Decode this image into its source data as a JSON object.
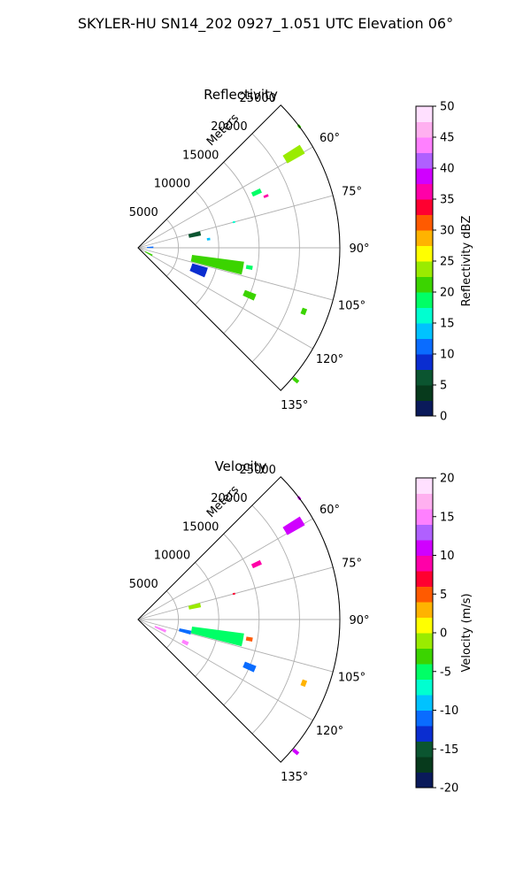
{
  "figure": {
    "title": "SKYLER-HU  SN14_202  0927_1.051 UTC Elevation 06°"
  },
  "panels": [
    {
      "title": "Reflectivity",
      "radial_label": "Meters",
      "radial_ticks": [
        "5000",
        "10000",
        "15000",
        "20000",
        "25000"
      ],
      "angle_ticks": [
        "60°",
        "75°",
        "90°",
        "105°",
        "120°",
        "135°"
      ],
      "colorbar": {
        "label": "Reflectivity dBZ",
        "ticks": [
          "0",
          "5",
          "10",
          "15",
          "20",
          "25",
          "30",
          "35",
          "40",
          "45",
          "50"
        ],
        "min": 0,
        "max": 50
      }
    },
    {
      "title": "Velocity",
      "radial_label": "Meters",
      "radial_ticks": [
        "5000",
        "10000",
        "15000",
        "20000",
        "25000"
      ],
      "angle_ticks": [
        "60°",
        "75°",
        "90°",
        "105°",
        "120°",
        "135°"
      ],
      "colorbar": {
        "label": "Velocity (m/s)",
        "ticks": [
          "-20",
          "-15",
          "-10",
          "-5",
          "0",
          "5",
          "10",
          "15",
          "20"
        ],
        "min": -20,
        "max": 20
      }
    }
  ],
  "chart_data": [
    {
      "type": "heatmap",
      "subtype": "polar-sector (radar PPI)",
      "title": "Reflectivity",
      "theta_range_deg": [
        45,
        135
      ],
      "r_range_m": [
        0,
        25000
      ],
      "radial_ticks": [
        5000,
        10000,
        15000,
        20000,
        25000
      ],
      "angle_ticks_deg": [
        60,
        75,
        90,
        105,
        120,
        135
      ],
      "colorbar_label": "Reflectivity dBZ",
      "colorbar_range": [
        0,
        50
      ],
      "colormap": [
        "#0a1a5a",
        "#073a1c",
        "#0b5530",
        "#0a2dd0",
        "#0a6cff",
        "#00c2ff",
        "#00ffd0",
        "#00ff66",
        "#3bd400",
        "#9aeb00",
        "#ffff00",
        "#ffb300",
        "#ff5a00",
        "#ff0030",
        "#ff00a8",
        "#d000ff",
        "#b060ff",
        "#ff80ff",
        "#ffb0f0",
        "#ffe0ff"
      ],
      "echoes": [
        {
          "r_m": 22500,
          "theta_deg": 59,
          "dr_m": 2500,
          "dtheta_deg": 3,
          "value": 24
        },
        {
          "r_m": 25000,
          "theta_deg": 53,
          "dr_m": 300,
          "dtheta_deg": 1,
          "value": 20
        },
        {
          "r_m": 16200,
          "theta_deg": 65,
          "dr_m": 1200,
          "dtheta_deg": 2,
          "value": 19
        },
        {
          "r_m": 17100,
          "theta_deg": 68,
          "dr_m": 600,
          "dtheta_deg": 1,
          "value": 37
        },
        {
          "r_m": 12300,
          "theta_deg": 75,
          "dr_m": 300,
          "dtheta_deg": 1,
          "value": 15
        },
        {
          "r_m": 7200,
          "theta_deg": 77,
          "dr_m": 1500,
          "dtheta_deg": 4,
          "value": 7
        },
        {
          "r_m": 8800,
          "theta_deg": 83,
          "dr_m": 400,
          "dtheta_deg": 2,
          "value": 13
        },
        {
          "r_m": 1500,
          "theta_deg": 88,
          "dr_m": 800,
          "dtheta_deg": 6,
          "value": 10
        },
        {
          "r_m": 10000,
          "theta_deg": 101,
          "dr_m": 6500,
          "dtheta_deg": 7,
          "value": 22
        },
        {
          "r_m": 8000,
          "theta_deg": 110,
          "dr_m": 2000,
          "dtheta_deg": 8,
          "value": 8
        },
        {
          "r_m": 1500,
          "theta_deg": 118,
          "dr_m": 1000,
          "dtheta_deg": 6,
          "value": 22
        },
        {
          "r_m": 14000,
          "theta_deg": 100,
          "dr_m": 800,
          "dtheta_deg": 2,
          "value": 18
        },
        {
          "r_m": 15000,
          "theta_deg": 113,
          "dr_m": 1500,
          "dtheta_deg": 3,
          "value": 20
        },
        {
          "r_m": 22000,
          "theta_deg": 111,
          "dr_m": 600,
          "dtheta_deg": 2,
          "value": 20
        },
        {
          "r_m": 25500,
          "theta_deg": 130,
          "dr_m": 800,
          "dtheta_deg": 1,
          "value": 21
        }
      ]
    },
    {
      "type": "heatmap",
      "subtype": "polar-sector (radar PPI)",
      "title": "Velocity",
      "theta_range_deg": [
        45,
        135
      ],
      "r_range_m": [
        0,
        25000
      ],
      "radial_ticks": [
        5000,
        10000,
        15000,
        20000,
        25000
      ],
      "angle_ticks_deg": [
        60,
        75,
        90,
        105,
        120,
        135
      ],
      "colorbar_label": "Velocity (m/s)",
      "colorbar_range": [
        -20,
        20
      ],
      "colormap": [
        "#0a1a5a",
        "#073a1c",
        "#0b5530",
        "#0a2dd0",
        "#0a6cff",
        "#00c2ff",
        "#00ffd0",
        "#00ff66",
        "#3bd400",
        "#9aeb00",
        "#ffff00",
        "#ffb300",
        "#ff5a00",
        "#ff0030",
        "#ff00a8",
        "#d000ff",
        "#b060ff",
        "#ff80ff",
        "#ffb0f0",
        "#ffe0ff"
      ],
      "echoes": [
        {
          "r_m": 22500,
          "theta_deg": 59,
          "dr_m": 2500,
          "dtheta_deg": 3,
          "value": 11
        },
        {
          "r_m": 25000,
          "theta_deg": 53,
          "dr_m": 300,
          "dtheta_deg": 1,
          "value": 11
        },
        {
          "r_m": 16200,
          "theta_deg": 65,
          "dr_m": 1200,
          "dtheta_deg": 2,
          "value": 8
        },
        {
          "r_m": 12300,
          "theta_deg": 75,
          "dr_m": 300,
          "dtheta_deg": 1,
          "value": 7
        },
        {
          "r_m": 7200,
          "theta_deg": 77,
          "dr_m": 1500,
          "dtheta_deg": 4,
          "value": -1
        },
        {
          "r_m": 10000,
          "theta_deg": 101,
          "dr_m": 6500,
          "dtheta_deg": 7,
          "value": -6
        },
        {
          "r_m": 6000,
          "theta_deg": 104,
          "dr_m": 1500,
          "dtheta_deg": 4,
          "value": -12
        },
        {
          "r_m": 3000,
          "theta_deg": 113,
          "dr_m": 1500,
          "dtheta_deg": 5,
          "value": 15
        },
        {
          "r_m": 6500,
          "theta_deg": 116,
          "dr_m": 800,
          "dtheta_deg": 4,
          "value": 14
        },
        {
          "r_m": 14000,
          "theta_deg": 100,
          "dr_m": 800,
          "dtheta_deg": 2,
          "value": 5
        },
        {
          "r_m": 15000,
          "theta_deg": 113,
          "dr_m": 1500,
          "dtheta_deg": 3,
          "value": -11
        },
        {
          "r_m": 22000,
          "theta_deg": 111,
          "dr_m": 600,
          "dtheta_deg": 2,
          "value": 3
        },
        {
          "r_m": 25500,
          "theta_deg": 130,
          "dr_m": 800,
          "dtheta_deg": 1,
          "value": 10
        }
      ]
    }
  ]
}
